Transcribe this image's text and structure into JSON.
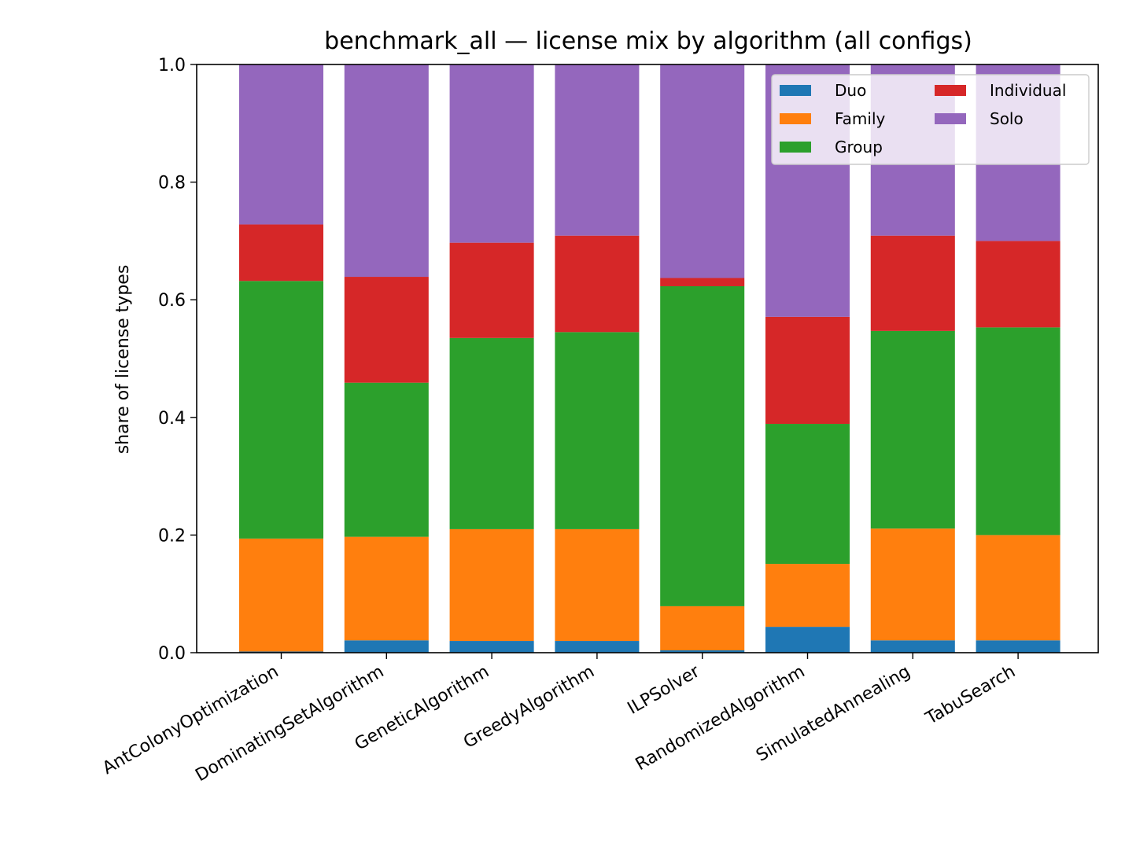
{
  "chart_data": {
    "type": "bar",
    "stacked": true,
    "title": "benchmark_all — license mix by algorithm (all configs)",
    "xlabel": "",
    "ylabel": "share of license types",
    "ylim": [
      0,
      1.0
    ],
    "yticks": [
      "0.0",
      "0.2",
      "0.4",
      "0.6",
      "0.8",
      "1.0"
    ],
    "grid": false,
    "legend_position": "top-right",
    "categories": [
      "AntColonyOptimization",
      "DominatingSetAlgorithm",
      "GeneticAlgorithm",
      "GreedyAlgorithm",
      "ILPSolver",
      "RandomizedAlgorithm",
      "SimulatedAnnealing",
      "TabuSearch"
    ],
    "series": [
      {
        "name": "Duo",
        "color": "#1f77b4",
        "values": [
          0.002,
          0.021,
          0.02,
          0.02,
          0.004,
          0.044,
          0.021,
          0.021
        ]
      },
      {
        "name": "Family",
        "color": "#ff7f0e",
        "values": [
          0.192,
          0.176,
          0.19,
          0.19,
          0.075,
          0.107,
          0.19,
          0.179
        ]
      },
      {
        "name": "Group",
        "color": "#2ca02c",
        "values": [
          0.438,
          0.262,
          0.325,
          0.335,
          0.544,
          0.238,
          0.336,
          0.353
        ]
      },
      {
        "name": "Individual",
        "color": "#d62728",
        "values": [
          0.096,
          0.18,
          0.162,
          0.164,
          0.014,
          0.182,
          0.162,
          0.147
        ]
      },
      {
        "name": "Solo",
        "color": "#9467bd",
        "values": [
          0.272,
          0.361,
          0.303,
          0.291,
          0.363,
          0.429,
          0.291,
          0.3
        ]
      }
    ]
  }
}
